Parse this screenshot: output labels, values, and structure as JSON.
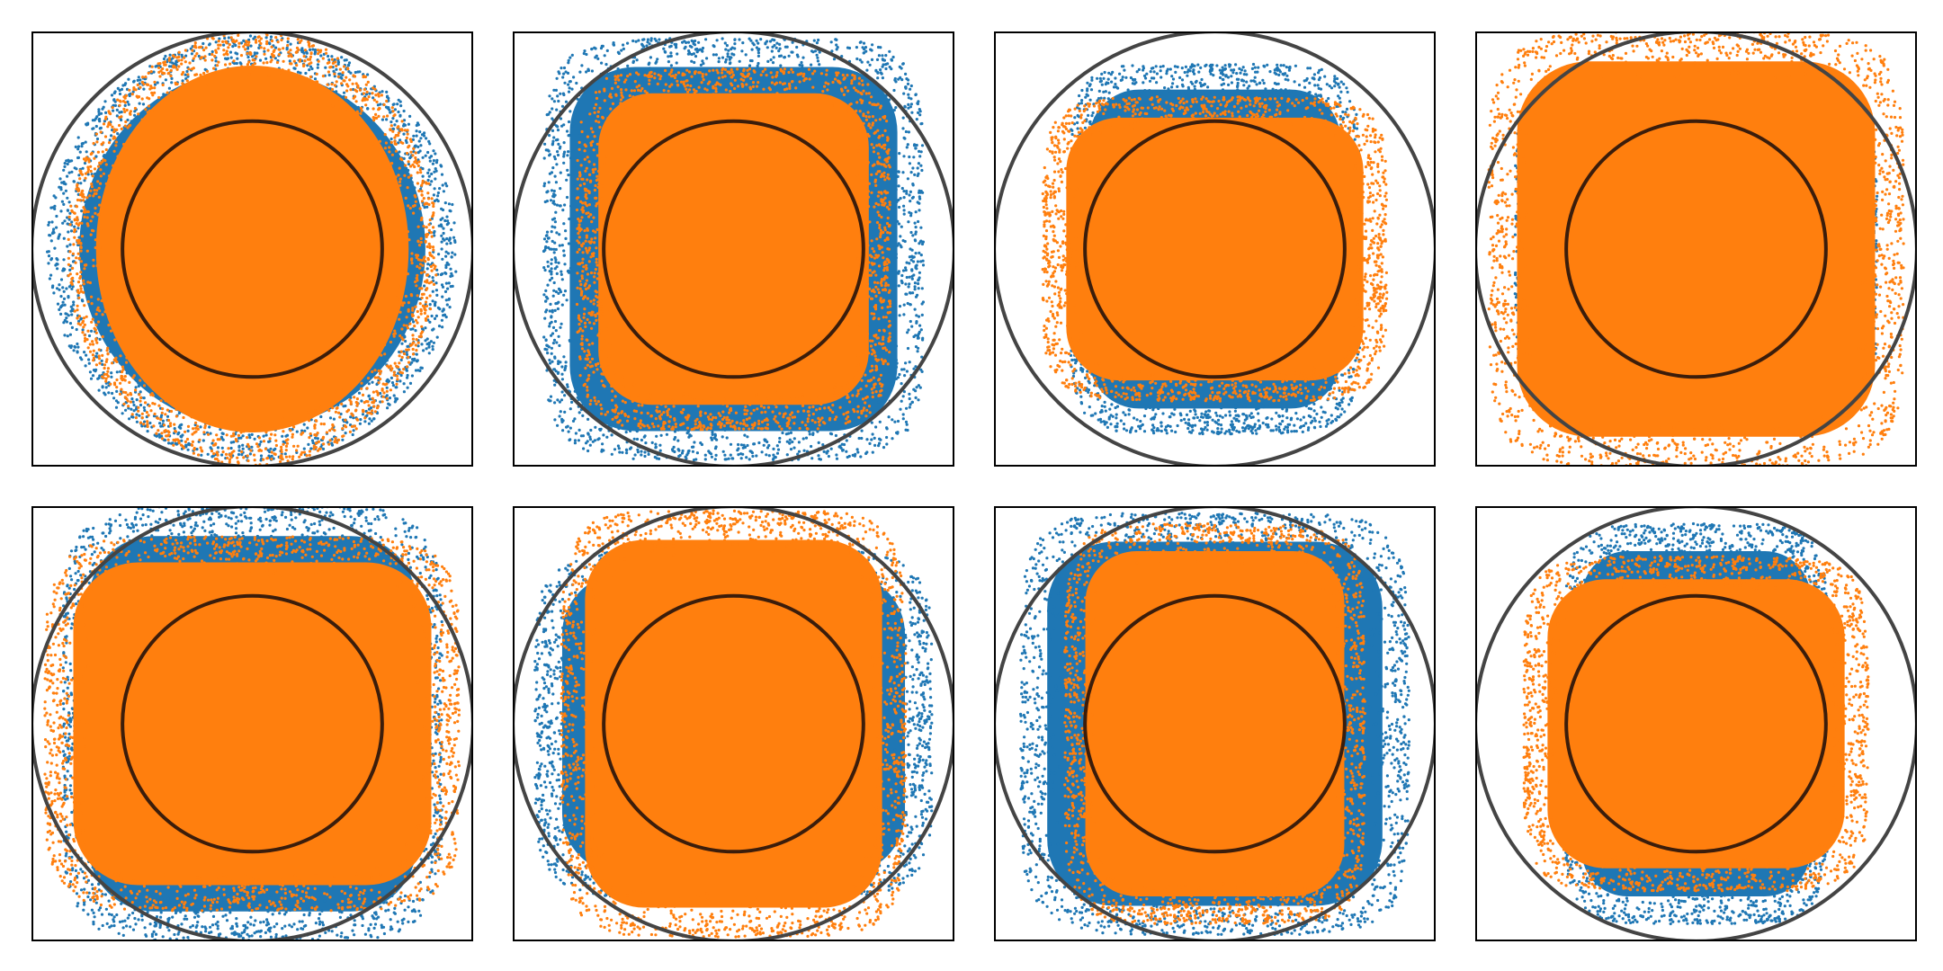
{
  "figure": {
    "rows": 2,
    "cols": 4
  },
  "colors": {
    "series_blue": "#1f77b4",
    "series_orange": "#ff7f0e",
    "outer_ring": "#444444",
    "inner_ring": "#3b1d0b",
    "frame": "#000000",
    "background": "#ffffff"
  },
  "chart_data": [
    {
      "type": "scatter",
      "panel": 1,
      "x_range": [
        -1,
        1
      ],
      "y_range": [
        -1,
        1
      ],
      "grid": false,
      "axes_ticks": false,
      "outer_circle_radius": 1.0,
      "inner_circle_radius": 0.6,
      "series": [
        {
          "color": "blue",
          "shape": "ellipse",
          "half_width": 0.93,
          "half_height": 0.98
        },
        {
          "color": "orange",
          "shape": "ellipse",
          "half_width": 0.84,
          "half_height": 1.0
        }
      ]
    },
    {
      "type": "scatter",
      "panel": 2,
      "x_range": [
        -1,
        1
      ],
      "y_range": [
        -1,
        1
      ],
      "grid": false,
      "axes_ticks": false,
      "outer_circle_radius": 1.0,
      "inner_circle_radius": 0.6,
      "series": [
        {
          "color": "blue",
          "shape": "rounded_square",
          "half_width": 0.86,
          "half_height": 0.97
        },
        {
          "color": "orange",
          "shape": "rounded_square",
          "half_width": 0.71,
          "half_height": 0.83
        }
      ]
    },
    {
      "type": "scatter",
      "panel": 3,
      "x_range": [
        -1,
        1
      ],
      "y_range": [
        -1,
        1
      ],
      "grid": false,
      "axes_ticks": false,
      "outer_circle_radius": 1.0,
      "inner_circle_radius": 0.6,
      "series": [
        {
          "color": "blue",
          "shape": "rounded_square",
          "half_width": 0.66,
          "half_height": 0.85
        },
        {
          "color": "orange",
          "shape": "rounded_square",
          "half_width": 0.78,
          "half_height": 0.7
        }
      ]
    },
    {
      "type": "scatter",
      "panel": 4,
      "x_range": [
        -1,
        1
      ],
      "y_range": [
        -1,
        1
      ],
      "grid": false,
      "axes_ticks": false,
      "outer_circle_radius": 1.0,
      "inner_circle_radius": 0.6,
      "series": [
        {
          "color": "blue",
          "shape": "rounded_square",
          "half_width": 0.82,
          "half_height": 0.82
        },
        {
          "color": "orange",
          "shape": "rounded_square",
          "half_width": 0.94,
          "half_height": 1.0
        }
      ]
    },
    {
      "type": "scatter",
      "panel": 5,
      "x_range": [
        -1,
        1
      ],
      "y_range": [
        -1,
        1
      ],
      "grid": false,
      "axes_ticks": false,
      "outer_circle_radius": 1.0,
      "inner_circle_radius": 0.6,
      "series": [
        {
          "color": "blue",
          "shape": "rounded_square",
          "half_width": 0.86,
          "half_height": 1.0
        },
        {
          "color": "orange",
          "shape": "rounded_square",
          "half_width": 0.94,
          "half_height": 0.86
        }
      ]
    },
    {
      "type": "scatter",
      "panel": 6,
      "x_range": [
        -1,
        1
      ],
      "y_range": [
        -1,
        1
      ],
      "grid": false,
      "axes_ticks": false,
      "outer_circle_radius": 1.0,
      "inner_circle_radius": 0.6,
      "series": [
        {
          "color": "blue",
          "shape": "rounded_square",
          "half_width": 0.9,
          "half_height": 0.8
        },
        {
          "color": "orange",
          "shape": "rounded_square",
          "half_width": 0.78,
          "half_height": 0.98
        }
      ]
    },
    {
      "type": "scatter",
      "panel": 7,
      "x_range": [
        -1,
        1
      ],
      "y_range": [
        -1,
        1
      ],
      "grid": false,
      "axes_ticks": false,
      "outer_circle_radius": 1.0,
      "inner_circle_radius": 0.6,
      "series": [
        {
          "color": "blue",
          "shape": "rounded_square",
          "half_width": 0.88,
          "half_height": 0.97
        },
        {
          "color": "orange",
          "shape": "rounded_square",
          "half_width": 0.68,
          "half_height": 0.92
        }
      ]
    },
    {
      "type": "scatter",
      "panel": 8,
      "x_range": [
        -1,
        1
      ],
      "y_range": [
        -1,
        1
      ],
      "grid": false,
      "axes_ticks": false,
      "outer_circle_radius": 1.0,
      "inner_circle_radius": 0.6,
      "series": [
        {
          "color": "blue",
          "shape": "rounded_square",
          "half_width": 0.6,
          "half_height": 0.92
        },
        {
          "color": "orange",
          "shape": "rounded_square",
          "half_width": 0.78,
          "half_height": 0.77
        }
      ]
    }
  ]
}
